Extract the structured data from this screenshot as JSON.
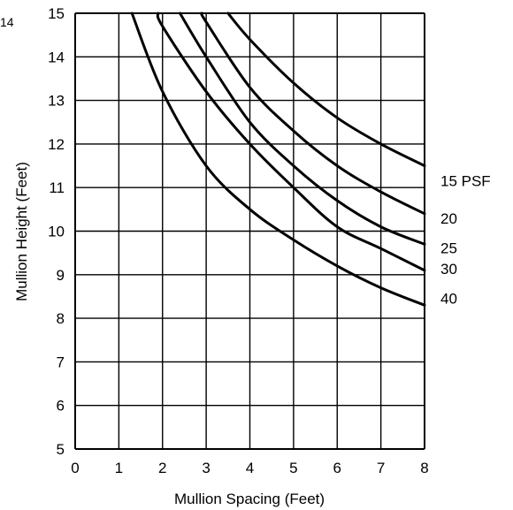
{
  "corner_label": "14",
  "chart_data": {
    "type": "line",
    "title": "",
    "xlabel": "Mullion Spacing (Feet)",
    "ylabel": "Mullion Height (Feet)",
    "xlim": [
      0,
      8
    ],
    "ylim": [
      5,
      15
    ],
    "xticks": [
      "0",
      "1",
      "2",
      "3",
      "4",
      "5",
      "6",
      "7",
      "8"
    ],
    "yticks": [
      "5",
      "6",
      "7",
      "8",
      "9",
      "10",
      "11",
      "12",
      "13",
      "14",
      "15"
    ],
    "grid": true,
    "series": [
      {
        "name": "15 PSF",
        "x": [
          3.5,
          4.0,
          5.0,
          6.0,
          7.0,
          8.0
        ],
        "y": [
          15.0,
          14.4,
          13.4,
          12.6,
          12.0,
          11.5
        ]
      },
      {
        "name": "20",
        "x": [
          2.9,
          3.0,
          4.0,
          5.0,
          6.0,
          7.0,
          8.0
        ],
        "y": [
          15.0,
          14.8,
          13.3,
          12.3,
          11.5,
          10.9,
          10.4
        ]
      },
      {
        "name": "25",
        "x": [
          2.4,
          3.0,
          4.0,
          5.0,
          6.0,
          7.0,
          8.0
        ],
        "y": [
          15.0,
          14.0,
          12.5,
          11.5,
          10.7,
          10.1,
          9.7
        ]
      },
      {
        "name": "30",
        "x": [
          1.9,
          2.0,
          3.0,
          4.0,
          5.0,
          6.0,
          7.0,
          8.0
        ],
        "y": [
          15.0,
          14.7,
          13.2,
          12.0,
          11.0,
          10.1,
          9.6,
          9.1
        ]
      },
      {
        "name": "40",
        "x": [
          1.3,
          2.0,
          3.0,
          4.0,
          5.0,
          6.0,
          7.0,
          8.0
        ],
        "y": [
          15.0,
          13.2,
          11.5,
          10.5,
          9.8,
          9.2,
          8.7,
          8.3
        ]
      }
    ]
  }
}
